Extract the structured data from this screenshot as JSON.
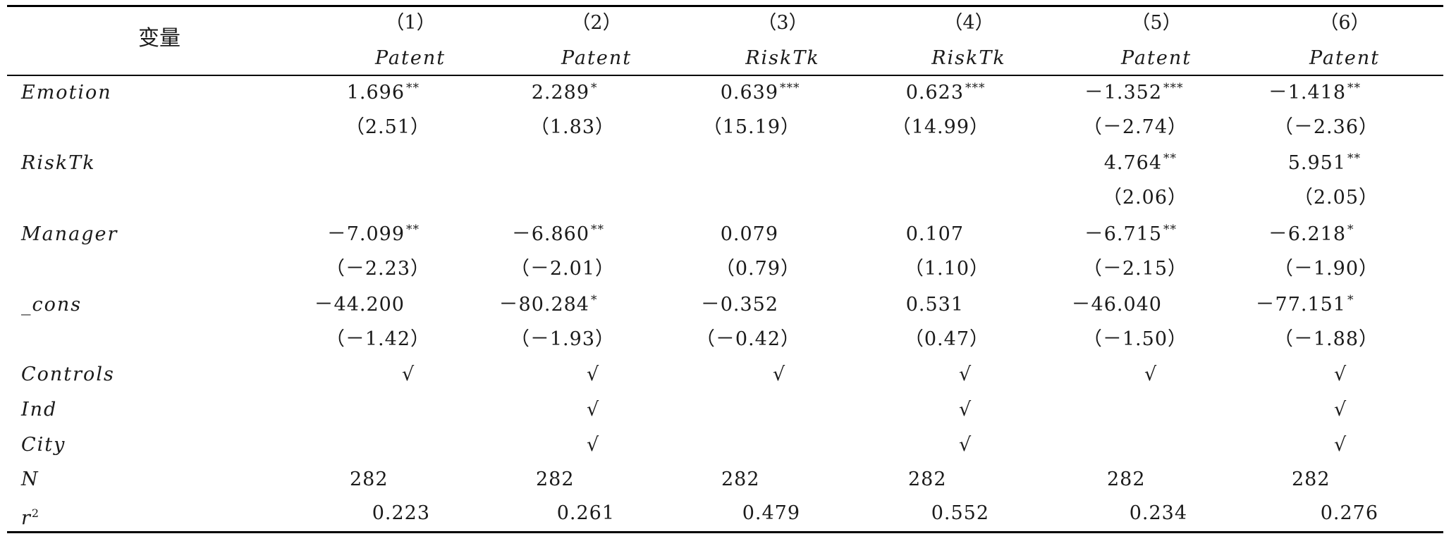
{
  "table": {
    "variable_header": "变量",
    "columns": [
      {
        "number": "（1）",
        "model": "Patent"
      },
      {
        "number": "（2）",
        "model": "Patent"
      },
      {
        "number": "（3）",
        "model": "RiskTk"
      },
      {
        "number": "（4）",
        "model": "RiskTk"
      },
      {
        "number": "（5）",
        "model": "Patent"
      },
      {
        "number": "（6）",
        "model": "Patent"
      }
    ],
    "rows": [
      {
        "label": "Emotion",
        "coef": [
          "1.696",
          "2.289",
          "0.639",
          "0.623",
          "－1.352",
          "－1.418"
        ],
        "stars": [
          "**",
          "*",
          "***",
          "***",
          "***",
          "**"
        ],
        "t": [
          "（2.51）",
          "（1.83）",
          "（15.19）",
          "（14.99）",
          "（－2.74）",
          "（－2.36）"
        ]
      },
      {
        "label": "RiskTk",
        "coef": [
          "",
          "",
          "",
          "",
          "4.764",
          "5.951"
        ],
        "stars": [
          "",
          "",
          "",
          "",
          "**",
          "**"
        ],
        "t": [
          "",
          "",
          "",
          "",
          "（2.06）",
          "（2.05）"
        ]
      },
      {
        "label": "Manager",
        "coef": [
          "－7.099",
          "－6.860",
          "0.079",
          "0.107",
          "－6.715",
          "－6.218"
        ],
        "stars": [
          "**",
          "**",
          "",
          "",
          "**",
          "*"
        ],
        "t": [
          "（－2.23）",
          "（－2.01）",
          "（0.79）",
          "（1.10）",
          "（－2.15）",
          "（－1.90）"
        ]
      },
      {
        "label": "_cons",
        "coef": [
          "－44.200",
          "－80.284",
          "－0.352",
          "0.531",
          "－46.040",
          "－77.151"
        ],
        "stars": [
          "",
          "*",
          "",
          "",
          "",
          "*"
        ],
        "t": [
          "（－1.42）",
          "（－1.93）",
          "（－0.42）",
          "（0.47）",
          "（－1.50）",
          "（－1.88）"
        ]
      }
    ],
    "controls": {
      "label": "Controls",
      "marks": [
        "√",
        "√",
        "√",
        "√",
        "√",
        "√"
      ]
    },
    "ind": {
      "label": "Ind",
      "marks": [
        "",
        "√",
        "",
        "√",
        "",
        "√"
      ]
    },
    "city": {
      "label": "City",
      "marks": [
        "",
        "√",
        "",
        "√",
        "",
        "√"
      ]
    },
    "n": {
      "label": "N",
      "values": [
        "282",
        "282",
        "282",
        "282",
        "282",
        "282"
      ]
    },
    "r2": {
      "label": "r",
      "superscript": "2",
      "values": [
        "0.223",
        "0.261",
        "0.479",
        "0.552",
        "0.234",
        "0.276"
      ]
    }
  }
}
